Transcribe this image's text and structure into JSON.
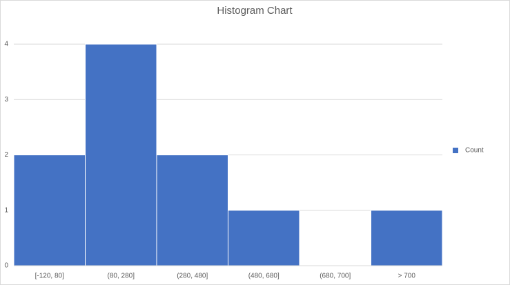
{
  "chart_data": {
    "type": "bar",
    "title": "Histogram Chart",
    "categories": [
      "[-120, 80]",
      "(80, 280]",
      "(280, 480]",
      "(480, 680]",
      "(680, 700]",
      "> 700"
    ],
    "series": [
      {
        "name": "Count",
        "color": "#4472c4",
        "values": [
          2,
          4,
          2,
          1,
          0,
          1
        ]
      }
    ],
    "ylim": [
      0,
      4
    ],
    "yticks": [
      0,
      1,
      2,
      3,
      4
    ],
    "grid": true,
    "legend": "right"
  }
}
